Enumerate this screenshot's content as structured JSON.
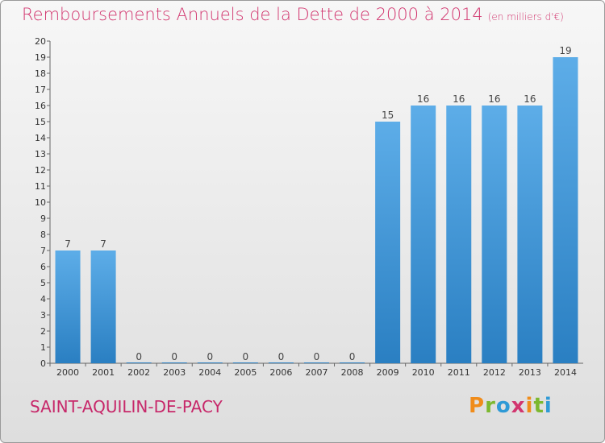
{
  "header": {
    "title": "Remboursements Annuels de la Dette de 2000 à 2014",
    "unit": "(en milliers d'€)"
  },
  "footer": {
    "commune": "SAINT-AQUILIN-DE-PACY",
    "logo": "Proxiti",
    "logo_colors": [
      "#f08c1a",
      "#7cb82f",
      "#2f9ad6",
      "#d2366f",
      "#f08c1a",
      "#7cb82f",
      "#2f9ad6"
    ]
  },
  "colors": {
    "bar_top": "#5dade8",
    "bar_bottom": "#2a7fc2",
    "title": "#d2366f"
  },
  "chart_data": {
    "type": "bar",
    "categories": [
      "2000",
      "2001",
      "2002",
      "2003",
      "2004",
      "2005",
      "2006",
      "2007",
      "2008",
      "2009",
      "2010",
      "2011",
      "2012",
      "2013",
      "2014"
    ],
    "values": [
      7,
      7,
      0,
      0,
      0,
      0,
      0,
      0,
      0,
      15,
      16,
      16,
      16,
      16,
      19
    ],
    "data_labels": [
      "7",
      "7",
      "0",
      "0",
      "0",
      "0",
      "0",
      "0",
      "0",
      "15",
      "16",
      "16",
      "16",
      "16",
      "19"
    ],
    "title": "Remboursements Annuels de la Dette de 2000 à 2014",
    "xlabel": "",
    "ylabel": "",
    "ylim": [
      0,
      20
    ],
    "yticks": [
      "0",
      "1",
      "2",
      "3",
      "4",
      "5",
      "6",
      "7",
      "8",
      "9",
      "10",
      "11",
      "12",
      "13",
      "14",
      "15",
      "16",
      "17",
      "18",
      "19",
      "20"
    ],
    "grid": false
  }
}
